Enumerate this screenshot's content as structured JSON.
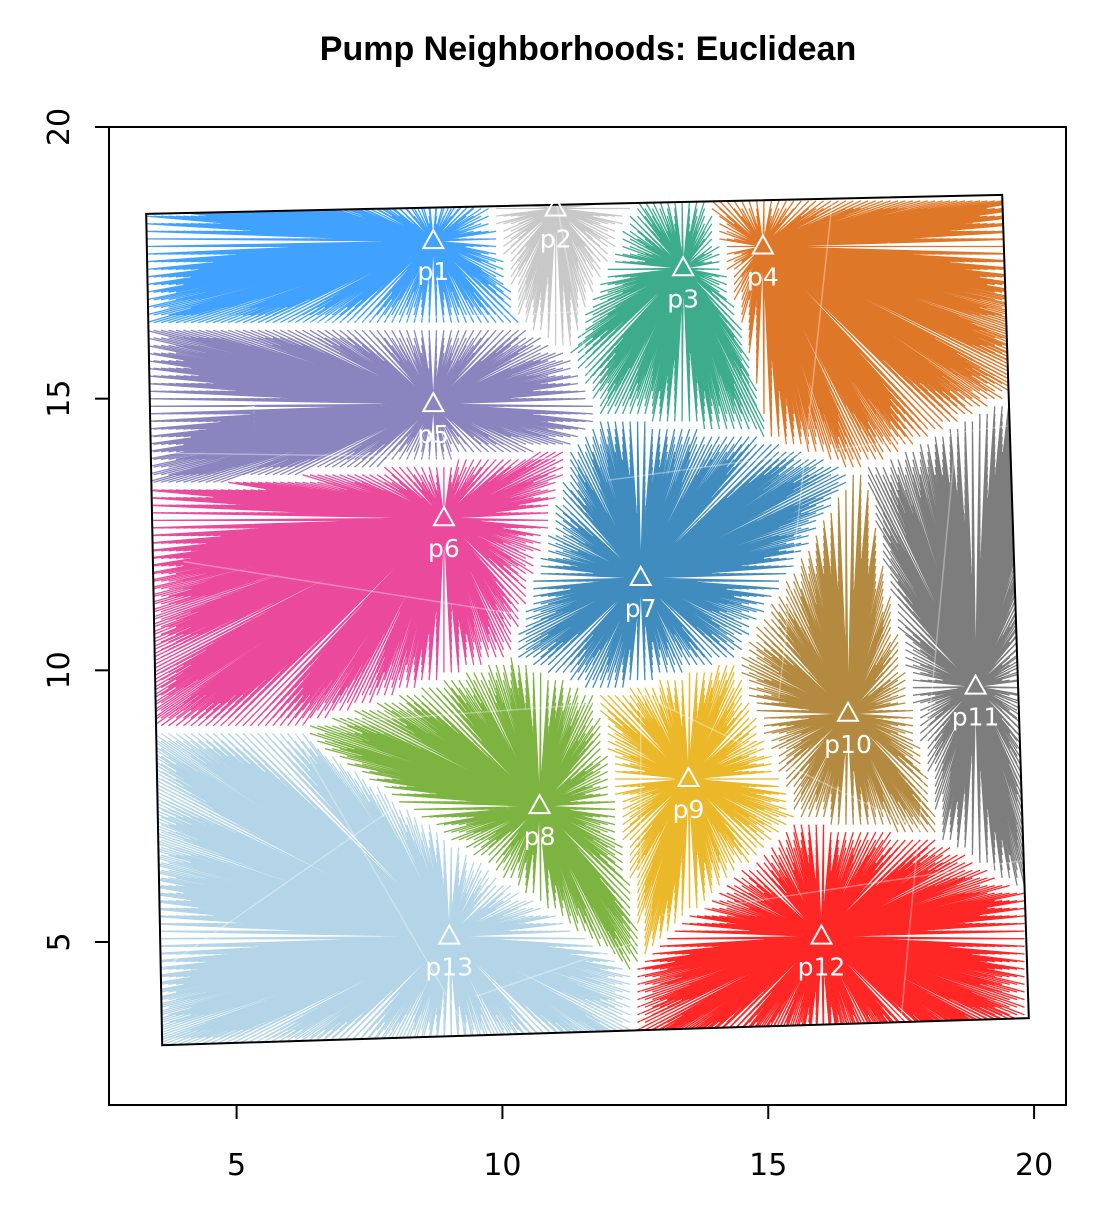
{
  "chart_data": {
    "type": "scatter",
    "title": "Pump Neighborhoods: Euclidean",
    "xlabel": "",
    "ylabel": "",
    "xlim": [
      2.6,
      20.6
    ],
    "ylim": [
      2.0,
      20.0
    ],
    "x_ticks": [
      5,
      10,
      15,
      20
    ],
    "y_ticks": [
      5,
      10,
      15,
      20
    ],
    "grid": false,
    "legend": "none",
    "map_outline": [
      [
        3.3,
        18.4
      ],
      [
        19.4,
        18.75
      ],
      [
        19.9,
        3.6
      ],
      [
        3.6,
        3.1
      ]
    ],
    "pumps": [
      {
        "label": "p1",
        "x": 8.7,
        "y": 17.9,
        "color": "#1E90FF"
      },
      {
        "label": "p2",
        "x": 11.0,
        "y": 18.5,
        "color": "#BEBEBE"
      },
      {
        "label": "p3",
        "x": 13.4,
        "y": 17.4,
        "color": "#1B9E77"
      },
      {
        "label": "p4",
        "x": 14.9,
        "y": 17.8,
        "color": "#D95F02"
      },
      {
        "label": "p5",
        "x": 8.7,
        "y": 14.9,
        "color": "#7570B3"
      },
      {
        "label": "p6",
        "x": 8.9,
        "y": 12.8,
        "color": "#E7298A"
      },
      {
        "label": "p7",
        "x": 12.6,
        "y": 11.7,
        "color": "#1F78B4"
      },
      {
        "label": "p8",
        "x": 10.7,
        "y": 7.5,
        "color": "#66A61E"
      },
      {
        "label": "p9",
        "x": 13.5,
        "y": 8.0,
        "color": "#E6AB02"
      },
      {
        "label": "p10",
        "x": 16.5,
        "y": 9.2,
        "color": "#A6761D"
      },
      {
        "label": "p11",
        "x": 18.9,
        "y": 9.7,
        "color": "#666666"
      },
      {
        "label": "p12",
        "x": 16.0,
        "y": 5.1,
        "color": "#FF0000"
      },
      {
        "label": "p13",
        "x": 9.0,
        "y": 5.1,
        "color": "#A6CEE3"
      }
    ]
  }
}
